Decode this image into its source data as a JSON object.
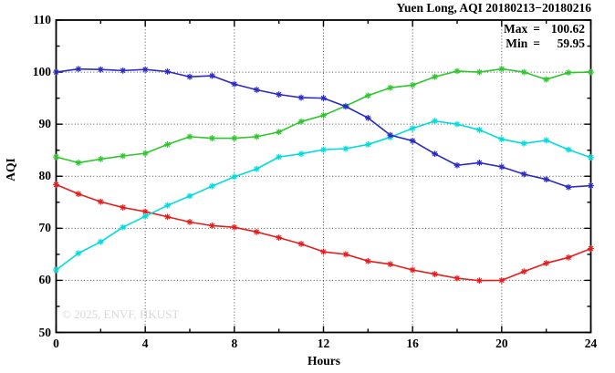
{
  "title": "Yuen Long, AQI 20180213−20180216",
  "annotations": {
    "max_label": "Max",
    "max_value": "100.62",
    "min_label": "Min",
    "min_value": "59.95"
  },
  "watermark": "© 2025, ENVF, HKUST",
  "chart_data": {
    "type": "line",
    "title": "Yuen Long, AQI 20180213−20180216",
    "xlabel": "Hours",
    "ylabel": "AQI",
    "xlim": [
      0,
      24
    ],
    "ylim": [
      50,
      110
    ],
    "x_major_ticks": [
      0,
      4,
      8,
      12,
      16,
      20,
      24
    ],
    "x_minor_step": 2,
    "y_major_ticks": [
      50,
      60,
      70,
      80,
      90,
      100,
      110
    ],
    "y_minor_step": 5,
    "grid": "dotted black gridlines at major ticks, ticks mirrored on all four borders",
    "legend": "none",
    "marker": "asterisk",
    "x": [
      0,
      1,
      2,
      3,
      4,
      5,
      6,
      7,
      8,
      9,
      10,
      11,
      12,
      13,
      14,
      15,
      16,
      17,
      18,
      19,
      20,
      21,
      22,
      23,
      24
    ],
    "series": [
      {
        "name": "red",
        "color": "#e81c1c",
        "values": [
          78.4,
          76.6,
          75.1,
          74.0,
          73.2,
          72.2,
          71.2,
          70.5,
          70.2,
          69.3,
          68.2,
          67.0,
          65.5,
          65.0,
          63.7,
          63.1,
          62.0,
          61.2,
          60.4,
          59.95,
          60.0,
          61.7,
          63.3,
          64.4,
          66.1
        ]
      },
      {
        "name": "cyan",
        "color": "#00dcdc",
        "values": [
          62.0,
          65.2,
          67.4,
          70.2,
          72.3,
          74.4,
          76.2,
          78.1,
          79.9,
          81.4,
          83.7,
          84.3,
          85.1,
          85.3,
          86.1,
          87.5,
          89.2,
          90.6,
          90.0,
          88.9,
          87.1,
          86.3,
          86.9,
          85.1,
          83.6
        ]
      },
      {
        "name": "green",
        "color": "#2dc72d",
        "values": [
          83.7,
          82.6,
          83.3,
          83.9,
          84.4,
          86.1,
          87.6,
          87.3,
          87.3,
          87.6,
          88.5,
          90.5,
          91.7,
          93.5,
          95.5,
          97.0,
          97.5,
          99.1,
          100.2,
          100.0,
          100.62,
          100.0,
          98.6,
          99.9,
          100.0
        ]
      },
      {
        "name": "blue",
        "color": "#2a2ac8",
        "values": [
          100.0,
          100.6,
          100.5,
          100.3,
          100.5,
          100.1,
          99.1,
          99.3,
          97.7,
          96.6,
          95.7,
          95.1,
          95.0,
          93.4,
          91.2,
          87.9,
          86.8,
          84.3,
          82.1,
          82.6,
          81.8,
          80.4,
          79.4,
          77.9,
          78.2
        ]
      }
    ],
    "stats": {
      "max": 100.62,
      "min": 59.95
    }
  }
}
